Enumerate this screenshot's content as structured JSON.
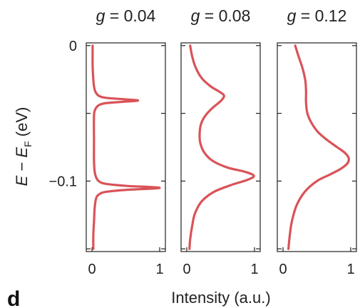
{
  "figure": {
    "panel_letter": "d"
  },
  "colors": {
    "line": "#d95358",
    "axis": "#222222"
  },
  "chart_data": [
    {
      "type": "line",
      "title_prefix": "g",
      "title_value": " = 0.04",
      "xlim": [
        0,
        1
      ],
      "ylim": [
        -0.152,
        0.002
      ],
      "x_ticks": [
        0,
        1
      ],
      "x_tick_labels": [
        "0",
        "1"
      ],
      "y_ticks": [
        0,
        -0.05,
        -0.1,
        -0.15
      ],
      "y_tick_labels": [
        "0",
        "",
        "−0.1",
        ""
      ],
      "series": [
        {
          "x": [
            0.01,
            0.01,
            0.02,
            0.03,
            0.05,
            0.1,
            0.2,
            0.45,
            0.68,
            0.45,
            0.2,
            0.1,
            0.05,
            0.03,
            0.03,
            0.03,
            0.04,
            0.06,
            0.1,
            0.2,
            0.5,
            1.0,
            0.5,
            0.2,
            0.1,
            0.06,
            0.04,
            0.03,
            0.02,
            0.02
          ],
          "y": [
            0.0,
            -0.015,
            -0.025,
            -0.03,
            -0.034,
            -0.037,
            -0.0385,
            -0.0395,
            -0.0405,
            -0.0415,
            -0.0425,
            -0.044,
            -0.047,
            -0.052,
            -0.07,
            -0.085,
            -0.093,
            -0.097,
            -0.1,
            -0.102,
            -0.1035,
            -0.105,
            -0.1065,
            -0.108,
            -0.11,
            -0.113,
            -0.12,
            -0.13,
            -0.14,
            -0.15
          ]
        }
      ]
    },
    {
      "type": "line",
      "title_prefix": "g",
      "title_value": " = 0.08",
      "xlim": [
        0,
        1
      ],
      "ylim": [
        -0.152,
        0.002
      ],
      "x_ticks": [
        0,
        1
      ],
      "x_tick_labels": [
        "0",
        "1"
      ],
      "y_ticks": [
        0,
        -0.05,
        -0.1,
        -0.15
      ],
      "y_tick_labels": [
        "",
        "",
        "",
        ""
      ],
      "series": [
        {
          "x": [
            0.05,
            0.08,
            0.13,
            0.22,
            0.35,
            0.48,
            0.55,
            0.5,
            0.38,
            0.27,
            0.21,
            0.19,
            0.2,
            0.26,
            0.38,
            0.6,
            0.85,
            0.99,
            0.9,
            0.65,
            0.4,
            0.22,
            0.12,
            0.08,
            0.05,
            0.04
          ],
          "y": [
            0.0,
            -0.008,
            -0.016,
            -0.024,
            -0.03,
            -0.034,
            -0.037,
            -0.041,
            -0.046,
            -0.052,
            -0.058,
            -0.065,
            -0.072,
            -0.079,
            -0.085,
            -0.09,
            -0.093,
            -0.096,
            -0.099,
            -0.103,
            -0.108,
            -0.115,
            -0.124,
            -0.133,
            -0.143,
            -0.15
          ]
        }
      ]
    },
    {
      "type": "line",
      "title_prefix": "g",
      "title_value": " = 0.12",
      "xlim": [
        0,
        1
      ],
      "ylim": [
        -0.152,
        0.002
      ],
      "x_ticks": [
        0,
        1
      ],
      "x_tick_labels": [
        "0",
        "1"
      ],
      "y_ticks": [
        0,
        -0.05,
        -0.1,
        -0.15
      ],
      "y_tick_labels": [
        "",
        "",
        "",
        ""
      ],
      "series": [
        {
          "x": [
            0.18,
            0.23,
            0.29,
            0.33,
            0.34,
            0.34,
            0.36,
            0.42,
            0.52,
            0.66,
            0.8,
            0.91,
            0.97,
            0.95,
            0.85,
            0.7,
            0.5,
            0.32,
            0.2,
            0.13,
            0.1,
            0.08
          ],
          "y": [
            0.0,
            -0.008,
            -0.017,
            -0.026,
            -0.034,
            -0.042,
            -0.05,
            -0.057,
            -0.064,
            -0.07,
            -0.075,
            -0.079,
            -0.083,
            -0.087,
            -0.091,
            -0.095,
            -0.1,
            -0.108,
            -0.118,
            -0.13,
            -0.14,
            -0.15
          ]
        }
      ]
    }
  ],
  "shared_axes": {
    "ylabel": "E − E",
    "ylabel_prefix": "E",
    "ylabel_mid": " − ",
    "ylabel_var": "E",
    "ylabel_sub": "F",
    "ylabel_unit": " (eV)",
    "xlabel": "Intensity (a.u.)"
  }
}
